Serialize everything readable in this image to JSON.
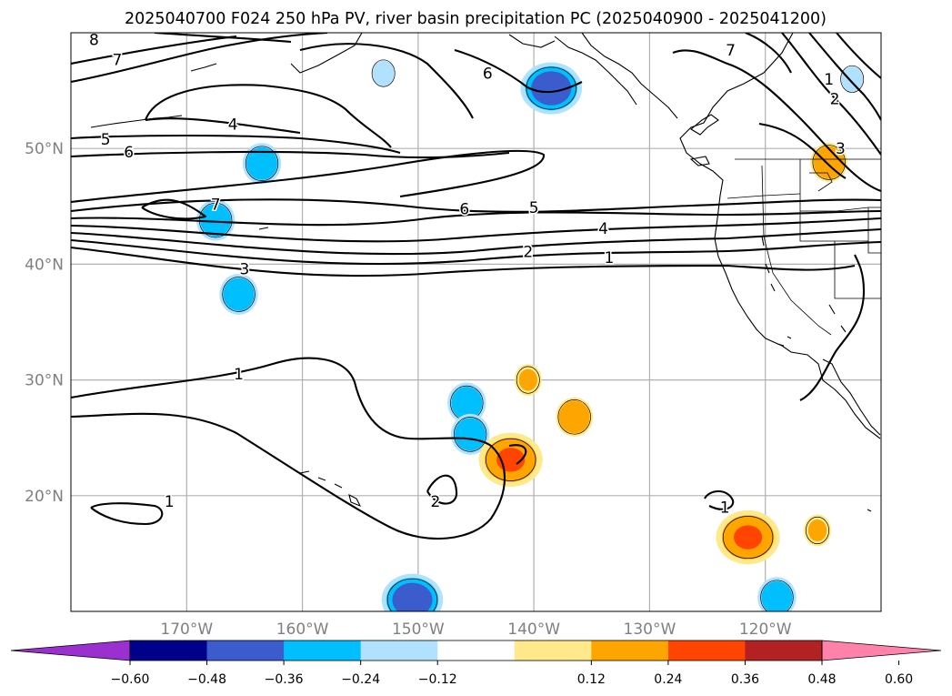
{
  "title": "2025040700 F024 250 hPa PV, river basin precipitation PC (2025040900 - 2025041200)",
  "map": {
    "lon_range": [
      -180,
      -110
    ],
    "lat_range": [
      10,
      60
    ],
    "lon_ticks": [
      {
        "value": -170,
        "label": "170°W"
      },
      {
        "value": -160,
        "label": "160°W"
      },
      {
        "value": -150,
        "label": "150°W"
      },
      {
        "value": -140,
        "label": "140°W"
      },
      {
        "value": -130,
        "label": "130°W"
      },
      {
        "value": -120,
        "label": "120°W"
      }
    ],
    "lat_ticks": [
      {
        "value": 20,
        "label": "20°N"
      },
      {
        "value": 30,
        "label": "30°N"
      },
      {
        "value": 40,
        "label": "40°N"
      },
      {
        "value": 50,
        "label": "50°N"
      }
    ],
    "gridlines": true
  },
  "contour_labels": [
    {
      "text": "8",
      "lon": -178.0,
      "lat": 59.4
    },
    {
      "text": "7",
      "lon": -176.0,
      "lat": 57.7
    },
    {
      "text": "4",
      "lon": -166.0,
      "lat": 52.1
    },
    {
      "text": "5",
      "lon": -177.0,
      "lat": 50.8
    },
    {
      "text": "6",
      "lon": -175.0,
      "lat": 49.7
    },
    {
      "text": "7",
      "lon": -167.5,
      "lat": 45.2
    },
    {
      "text": "3",
      "lon": -165.0,
      "lat": 39.6
    },
    {
      "text": "6",
      "lon": -146.0,
      "lat": 44.8
    },
    {
      "text": "5",
      "lon": -140.0,
      "lat": 44.9
    },
    {
      "text": "4",
      "lon": -134.0,
      "lat": 43.1
    },
    {
      "text": "2",
      "lon": -140.5,
      "lat": 41.1
    },
    {
      "text": "1",
      "lon": -133.5,
      "lat": 40.6
    },
    {
      "text": "1",
      "lon": -165.5,
      "lat": 30.5
    },
    {
      "text": "6",
      "lon": -144.0,
      "lat": 56.5
    },
    {
      "text": "7",
      "lon": -123.0,
      "lat": 58.5
    },
    {
      "text": "1",
      "lon": -114.5,
      "lat": 56.0
    },
    {
      "text": "2",
      "lon": -114.0,
      "lat": 54.3
    },
    {
      "text": "3",
      "lon": -113.5,
      "lat": 50.0
    },
    {
      "text": "1",
      "lon": -171.5,
      "lat": 19.5
    },
    {
      "text": "2",
      "lon": -148.5,
      "lat": 19.5
    },
    {
      "text": "1",
      "lon": -123.5,
      "lat": 19.0
    }
  ],
  "colorbar": {
    "extend": "both",
    "ticks": [
      "−0.60",
      "−0.48",
      "−0.36",
      "−0.24",
      "−0.12",
      "0.12",
      "0.24",
      "0.36",
      "0.48",
      "0.60"
    ],
    "colors": [
      "#9b30d0",
      "#00008b",
      "#3a5ccd",
      "#00bfff",
      "#b0e2ff",
      "#ffffff",
      "#ffe98a",
      "#ffa500",
      "#ff4500",
      "#b22222",
      "#ff82ab"
    ]
  },
  "precip_blobs": [
    {
      "lon": -153.0,
      "lat": 56.5,
      "category": "neg_light"
    },
    {
      "lon": -138.5,
      "lat": 55.2,
      "category": "neg_strong"
    },
    {
      "lon": -163.5,
      "lat": 48.7,
      "category": "neg_mid"
    },
    {
      "lon": -167.5,
      "lat": 43.8,
      "category": "neg_mid"
    },
    {
      "lon": -165.5,
      "lat": 37.4,
      "category": "neg_mid"
    },
    {
      "lon": -145.8,
      "lat": 28.0,
      "category": "neg_mid"
    },
    {
      "lon": -145.5,
      "lat": 25.3,
      "category": "neg_mid"
    },
    {
      "lon": -150.5,
      "lat": 11.0,
      "category": "neg_strong"
    },
    {
      "lon": -119.0,
      "lat": 11.2,
      "category": "neg_mid"
    },
    {
      "lon": -112.5,
      "lat": 56.0,
      "category": "neg_light"
    },
    {
      "lon": -140.5,
      "lat": 30.0,
      "category": "pos_light"
    },
    {
      "lon": -136.5,
      "lat": 26.8,
      "category": "pos_mid"
    },
    {
      "lon": -142.0,
      "lat": 23.1,
      "category": "pos_strong"
    },
    {
      "lon": -121.5,
      "lat": 16.4,
      "category": "pos_strong"
    },
    {
      "lon": -114.5,
      "lat": 48.8,
      "category": "pos_mid"
    },
    {
      "lon": -115.5,
      "lat": 17.0,
      "category": "pos_light"
    }
  ]
}
